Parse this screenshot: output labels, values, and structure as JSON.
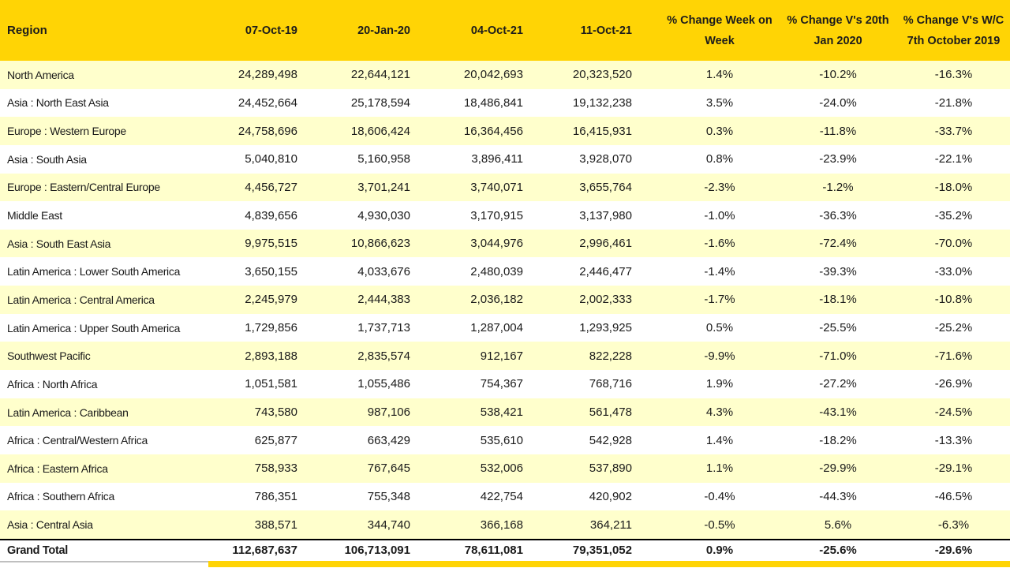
{
  "colors": {
    "header_gold": "#FFD405",
    "row_stripe_yellow": "#FFFFCC",
    "row_white": "#FFFFFF",
    "grand_total_border": "#000000",
    "footer_line_grey": "#BFBFBF",
    "text": "#1A1A1A"
  },
  "chart_data": {
    "type": "table",
    "columns": [
      {
        "label": "Region",
        "align": "left"
      },
      {
        "label": "07-Oct-19",
        "align": "right"
      },
      {
        "label": "20-Jan-20",
        "align": "right"
      },
      {
        "label": "04-Oct-21",
        "align": "right"
      },
      {
        "label": "11-Oct-21",
        "align": "right"
      },
      {
        "label": "% Change Week on Week",
        "line1": "% Change Week on",
        "line2": "Week",
        "align": "center"
      },
      {
        "label": "% Change V's 20th Jan 2020",
        "line1": "% Change V's 20th",
        "line2": "Jan 2020",
        "align": "center"
      },
      {
        "label": "% Change V's W/C 7th October 2019",
        "line1": "% Change V's W/C",
        "line2": "7th October 2019",
        "align": "center"
      }
    ],
    "rows": [
      [
        "North America",
        "24,289,498",
        "22,644,121",
        "20,042,693",
        "20,323,520",
        "1.4%",
        "-10.2%",
        "-16.3%"
      ],
      [
        "Asia : North East Asia",
        "24,452,664",
        "25,178,594",
        "18,486,841",
        "19,132,238",
        "3.5%",
        "-24.0%",
        "-21.8%"
      ],
      [
        "Europe : Western Europe",
        "24,758,696",
        "18,606,424",
        "16,364,456",
        "16,415,931",
        "0.3%",
        "-11.8%",
        "-33.7%"
      ],
      [
        "Asia : South Asia",
        "5,040,810",
        "5,160,958",
        "3,896,411",
        "3,928,070",
        "0.8%",
        "-23.9%",
        "-22.1%"
      ],
      [
        "Europe : Eastern/Central Europe",
        "4,456,727",
        "3,701,241",
        "3,740,071",
        "3,655,764",
        "-2.3%",
        "-1.2%",
        "-18.0%"
      ],
      [
        "Middle East",
        "4,839,656",
        "4,930,030",
        "3,170,915",
        "3,137,980",
        "-1.0%",
        "-36.3%",
        "-35.2%"
      ],
      [
        "Asia : South East Asia",
        "9,975,515",
        "10,866,623",
        "3,044,976",
        "2,996,461",
        "-1.6%",
        "-72.4%",
        "-70.0%"
      ],
      [
        "Latin America : Lower South America",
        "3,650,155",
        "4,033,676",
        "2,480,039",
        "2,446,477",
        "-1.4%",
        "-39.3%",
        "-33.0%"
      ],
      [
        "Latin America : Central America",
        "2,245,979",
        "2,444,383",
        "2,036,182",
        "2,002,333",
        "-1.7%",
        "-18.1%",
        "-10.8%"
      ],
      [
        "Latin America : Upper South America",
        "1,729,856",
        "1,737,713",
        "1,287,004",
        "1,293,925",
        "0.5%",
        "-25.5%",
        "-25.2%"
      ],
      [
        "Southwest Pacific",
        "2,893,188",
        "2,835,574",
        "912,167",
        "822,228",
        "-9.9%",
        "-71.0%",
        "-71.6%"
      ],
      [
        "Africa : North Africa",
        "1,051,581",
        "1,055,486",
        "754,367",
        "768,716",
        "1.9%",
        "-27.2%",
        "-26.9%"
      ],
      [
        "Latin America : Caribbean",
        "743,580",
        "987,106",
        "538,421",
        "561,478",
        "4.3%",
        "-43.1%",
        "-24.5%"
      ],
      [
        "Africa : Central/Western Africa",
        "625,877",
        "663,429",
        "535,610",
        "542,928",
        "1.4%",
        "-18.2%",
        "-13.3%"
      ],
      [
        "Africa : Eastern Africa",
        "758,933",
        "767,645",
        "532,006",
        "537,890",
        "1.1%",
        "-29.9%",
        "-29.1%"
      ],
      [
        "Africa : Southern Africa",
        "786,351",
        "755,348",
        "422,754",
        "420,902",
        "-0.4%",
        "-44.3%",
        "-46.5%"
      ],
      [
        "Asia : Central Asia",
        "388,571",
        "344,740",
        "366,168",
        "364,211",
        "-0.5%",
        "5.6%",
        "-6.3%"
      ]
    ],
    "grand_total": [
      "Grand Total",
      "112,687,637",
      "106,713,091",
      "78,611,081",
      "79,351,052",
      "0.9%",
      "-25.6%",
      "-29.6%"
    ]
  }
}
